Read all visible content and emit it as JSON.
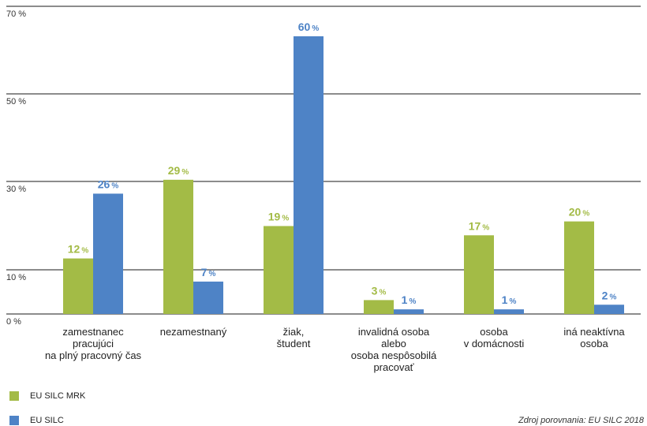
{
  "chart_data": {
    "type": "bar",
    "categories": [
      [
        "zamestnanec",
        "pracujúci",
        "na plný pracovný čas"
      ],
      [
        "nezamestnaný"
      ],
      [
        "žiak,",
        "študent"
      ],
      [
        "invalidná osoba",
        "alebo",
        "osoba nespôsobilá",
        "pracovať"
      ],
      [
        "osoba",
        "v domácnosti"
      ],
      [
        "iná neaktívna",
        "osoba"
      ]
    ],
    "series": [
      {
        "name": "EU SILC MRK",
        "color": "#a3bb46",
        "values": [
          12,
          29,
          19,
          3,
          17,
          20
        ]
      },
      {
        "name": "EU SILC",
        "color": "#4e83c6",
        "values": [
          26,
          7,
          60,
          1,
          1,
          2
        ]
      }
    ],
    "value_unit": "%",
    "yticks": [
      "0 %",
      "10 %",
      "30 %",
      "50 %",
      "70 %"
    ],
    "yaxis_note": "tick labels printed as 0, 10, 30, 50, 70 at evenly spaced gridlines",
    "ylim": [
      0,
      70
    ],
    "grid": true,
    "legend_position": "bottom-left",
    "source": "Zdroj porovnania: EU SILC 2018"
  }
}
